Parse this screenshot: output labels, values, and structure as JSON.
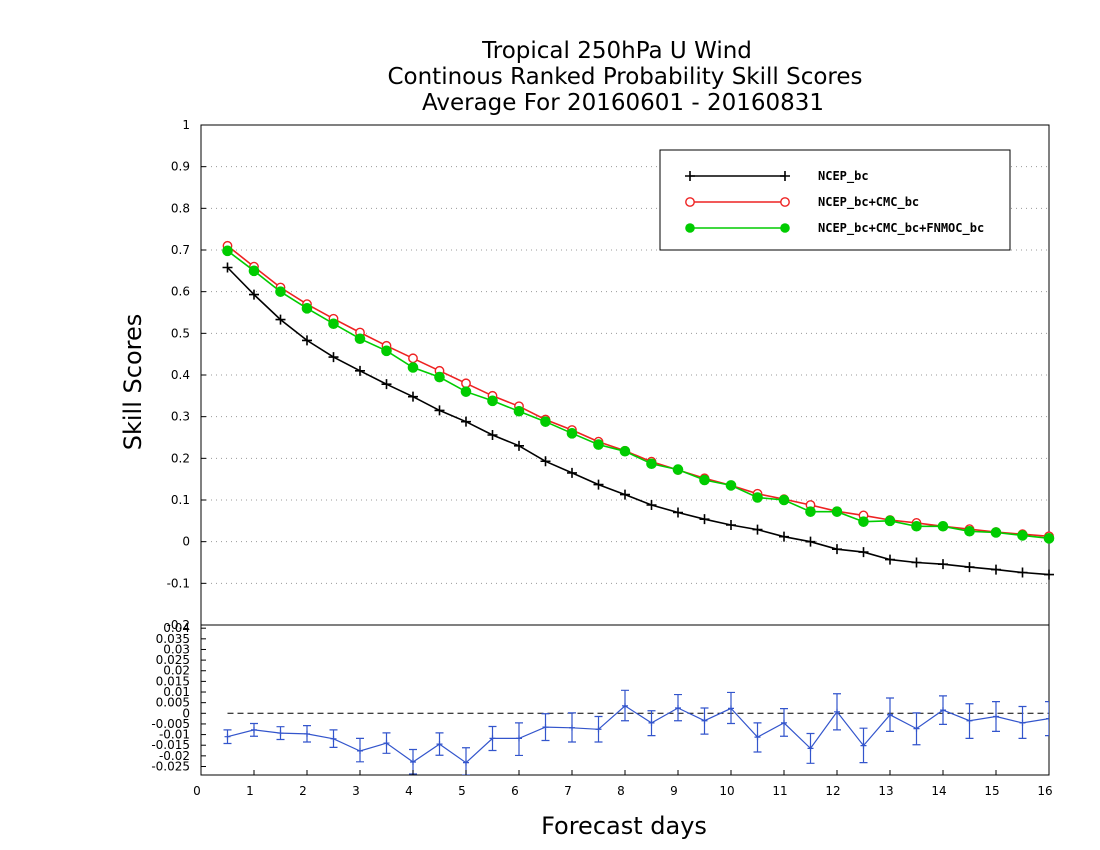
{
  "chart_data": [
    {
      "type": "line",
      "title": [
        "Tropical 250hPa U Wind",
        "Continous Ranked Probability Skill Scores",
        "Average For 20160601 - 20160831"
      ],
      "ylabel": "Skill Scores",
      "xlim": [
        0,
        16
      ],
      "ylim": [
        -0.2,
        1
      ],
      "x_ticks": [
        "0",
        "1",
        "2",
        "3",
        "4",
        "5",
        "6",
        "7",
        "8",
        "9",
        "10",
        "11",
        "12",
        "13",
        "14",
        "15",
        "16"
      ],
      "y_ticks": [
        "-0.1",
        "0",
        "0.1",
        "0.2",
        "0.3",
        "0.4",
        "0.5",
        "0.6",
        "0.7",
        "0.8",
        "0.9",
        "1"
      ],
      "grid": "horizontal dotted",
      "legend_position": "top-right",
      "x": [
        0.5,
        1,
        1.5,
        2,
        2.5,
        3,
        3.5,
        4,
        4.5,
        5,
        5.5,
        6,
        6.5,
        7,
        7.5,
        8,
        8.5,
        9,
        9.5,
        10,
        10.5,
        11,
        11.5,
        12,
        12.5,
        13,
        13.5,
        14,
        14.5,
        15,
        15.5,
        16
      ],
      "series": [
        {
          "name": "NCEP_bc",
          "color": "#000000",
          "marker": "plus",
          "values": [
            0.658,
            0.593,
            0.533,
            0.483,
            0.443,
            0.41,
            0.378,
            0.348,
            0.315,
            0.288,
            0.256,
            0.23,
            0.193,
            0.165,
            0.137,
            0.113,
            0.088,
            0.07,
            0.054,
            0.04,
            0.029,
            0.012,
            0.0,
            -0.018,
            -0.025,
            -0.043,
            -0.05,
            -0.054,
            -0.061,
            -0.067,
            -0.074,
            -0.079
          ]
        },
        {
          "name": "NCEP_bc+CMC_bc",
          "color": "#ee2222",
          "marker": "open-circle",
          "values": [
            0.71,
            0.66,
            0.61,
            0.57,
            0.535,
            0.502,
            0.47,
            0.44,
            0.41,
            0.38,
            0.35,
            0.325,
            0.293,
            0.268,
            0.24,
            0.218,
            0.192,
            0.172,
            0.152,
            0.135,
            0.115,
            0.102,
            0.088,
            0.073,
            0.063,
            0.052,
            0.045,
            0.037,
            0.03,
            0.023,
            0.018,
            0.013
          ]
        },
        {
          "name": "NCEP_bc+CMC_bc+FNMOC_bc",
          "color": "#00cc00",
          "marker": "filled-circle",
          "values": [
            0.698,
            0.65,
            0.6,
            0.56,
            0.523,
            0.487,
            0.458,
            0.418,
            0.395,
            0.36,
            0.338,
            0.313,
            0.288,
            0.26,
            0.233,
            0.217,
            0.187,
            0.173,
            0.148,
            0.135,
            0.106,
            0.1,
            0.072,
            0.072,
            0.048,
            0.05,
            0.037,
            0.037,
            0.025,
            0.022,
            0.015,
            0.008
          ]
        }
      ]
    },
    {
      "type": "line",
      "title": "",
      "xlabel": "Forecast days",
      "xlim": [
        0,
        16
      ],
      "ylim": [
        -0.029,
        0.0415
      ],
      "x_ticks": [
        "0",
        "1",
        "2",
        "3",
        "4",
        "5",
        "6",
        "7",
        "8",
        "9",
        "10",
        "11",
        "12",
        "13",
        "14",
        "15",
        "16"
      ],
      "y_ticks": [
        "-0.025",
        "-0.02",
        "-0.015",
        "-0.01",
        "-0.005",
        "0",
        "0.005",
        "0.01",
        "0.015",
        "0.02",
        "0.025",
        "0.03",
        "0.035",
        "0.04"
      ],
      "top_tick_label": "-0.2",
      "zero_line": "dashed",
      "error_bars": true,
      "x": [
        0.5,
        1,
        1.5,
        2,
        2.5,
        3,
        3.5,
        4,
        4.5,
        5,
        5.5,
        6,
        6.5,
        7,
        7.5,
        8,
        8.5,
        9,
        9.5,
        10,
        10.5,
        11,
        11.5,
        12,
        12.5,
        13,
        13.5,
        14,
        14.5,
        15,
        15.5,
        16
      ],
      "series": [
        {
          "color": "#3355cc",
          "values": [
            -0.011,
            -0.0078,
            -0.0093,
            -0.0097,
            -0.012,
            -0.0177,
            -0.014,
            -0.0229,
            -0.0145,
            -0.0232,
            -0.0118,
            -0.0118,
            -0.0065,
            -0.0068,
            -0.0075,
            0.0035,
            -0.0045,
            0.0025,
            -0.0035,
            0.0023,
            -0.0112,
            -0.0045,
            -0.0165,
            0.0007,
            -0.0152,
            -0.0007,
            -0.0072,
            0.0015,
            -0.0035,
            -0.0015,
            -0.0045,
            -0.0025
          ],
          "lower": [
            -0.0142,
            -0.0108,
            -0.0123,
            -0.0135,
            -0.016,
            -0.0228,
            -0.0188,
            -0.0285,
            -0.0197,
            -0.029,
            -0.0175,
            -0.0198,
            -0.0128,
            -0.0135,
            -0.0135,
            -0.0035,
            -0.0105,
            -0.0035,
            -0.0098,
            -0.0048,
            -0.0182,
            -0.0108,
            -0.0235,
            -0.0078,
            -0.0232,
            -0.0085,
            -0.0148,
            -0.0052,
            -0.0118,
            -0.0085,
            -0.0118,
            -0.0105
          ],
          "upper": [
            -0.0078,
            -0.0048,
            -0.0063,
            -0.0058,
            -0.0078,
            -0.0118,
            -0.0092,
            -0.017,
            -0.0092,
            -0.0162,
            -0.0062,
            -0.0045,
            -0.0002,
            0.0002,
            -0.0015,
            0.0108,
            0.0012,
            0.0088,
            0.0025,
            0.0098,
            -0.0045,
            0.0022,
            -0.0095,
            0.0092,
            -0.007,
            0.0072,
            0.0002,
            0.0082,
            0.0045,
            0.0055,
            0.0032,
            0.0055
          ]
        }
      ]
    }
  ]
}
